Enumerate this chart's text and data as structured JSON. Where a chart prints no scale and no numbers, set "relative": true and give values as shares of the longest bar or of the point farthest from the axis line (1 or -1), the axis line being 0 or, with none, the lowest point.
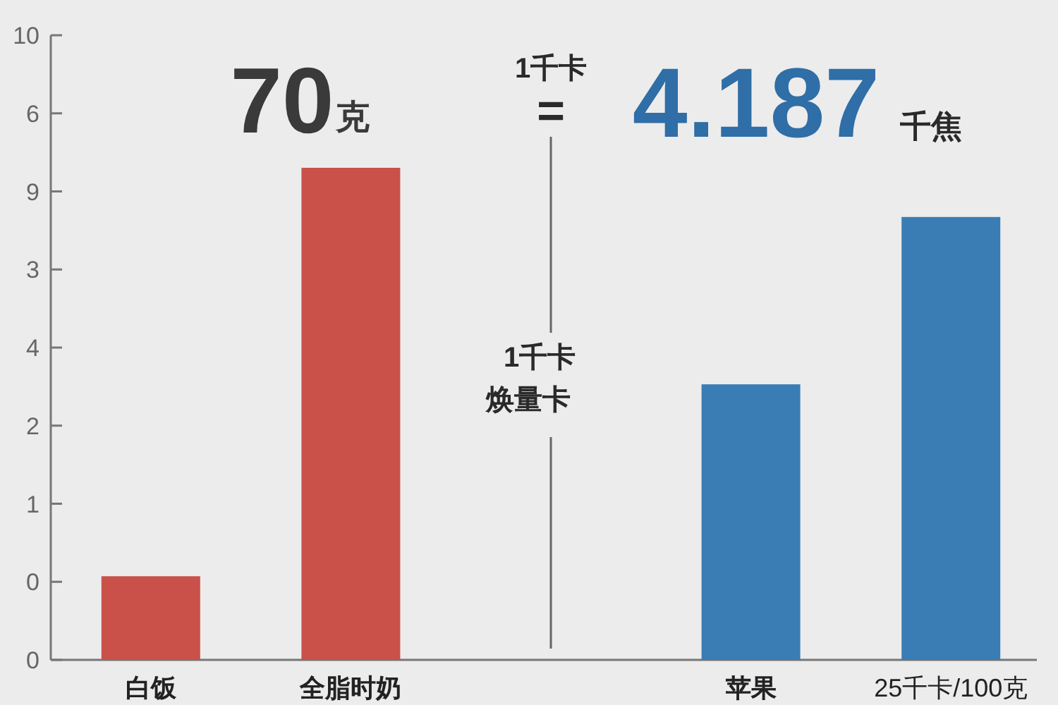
{
  "chart_data": {
    "type": "bar",
    "relative": true,
    "categories": [
      "白饭",
      "全脂时奶",
      null,
      "苹果",
      "25千卡/100克"
    ],
    "values": [
      0.17,
      1,
      null,
      0.56,
      0.9
    ],
    "colors": [
      "#c9514a",
      "#c9514a",
      null,
      "#3a7db5",
      "#3a7db5"
    ],
    "annotations": [
      "70",
      "克",
      "1千卡",
      "=",
      "4.187",
      "千焦",
      "1千卡",
      "焕量卡",
      "10",
      "6",
      "9",
      "3",
      "4",
      "2",
      "1",
      "0",
      "0"
    ]
  }
}
